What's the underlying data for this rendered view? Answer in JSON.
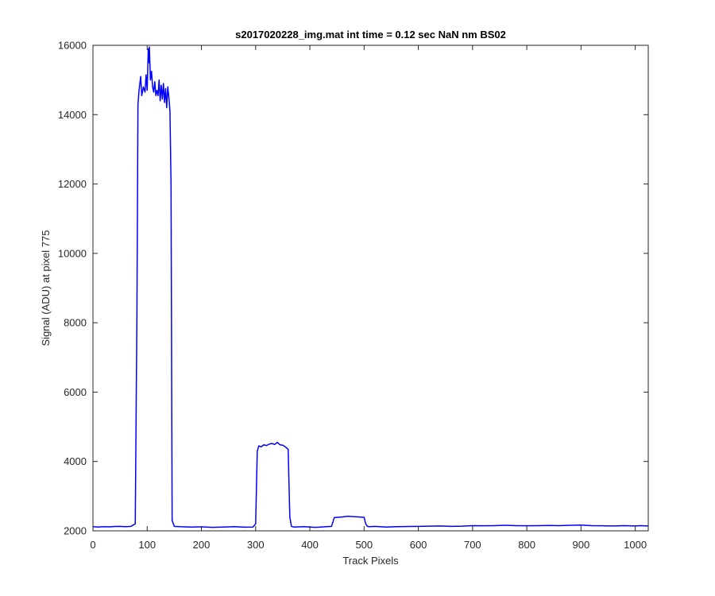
{
  "chart_data": {
    "type": "line",
    "title": "s2017020228_img.mat int time = 0.12 sec  NaN nm BS02",
    "xlabel": "Track Pixels",
    "ylabel": "Signal (ADU) at pixel 775",
    "xlim": [
      0,
      1024
    ],
    "ylim": [
      2000,
      16000
    ],
    "xticks": [
      "0",
      "100",
      "200",
      "300",
      "400",
      "500",
      "600",
      "700",
      "800",
      "900",
      "1000"
    ],
    "yticks": [
      "2000",
      "4000",
      "6000",
      "8000",
      "10000",
      "12000",
      "14000",
      "16000"
    ],
    "grid": false,
    "line_color": "#0000ff",
    "series": [
      {
        "x": [
          0,
          10,
          20,
          30,
          40,
          50,
          60,
          70,
          78,
          81,
          83,
          85,
          88,
          90,
          93,
          96,
          98,
          100,
          102,
          103,
          104,
          106,
          108,
          110,
          112,
          114,
          116,
          118,
          120,
          122,
          124,
          126,
          128,
          130,
          132,
          134,
          136,
          138,
          140,
          142,
          144,
          146,
          150,
          160,
          180,
          200,
          220,
          240,
          260,
          280,
          295,
          300,
          303,
          306,
          310,
          315,
          320,
          325,
          330,
          335,
          340,
          345,
          350,
          355,
          360,
          363,
          366,
          370,
          380,
          390,
          400,
          410,
          420,
          430,
          440,
          445,
          450,
          460,
          470,
          480,
          490,
          500,
          503,
          506,
          510,
          520,
          540,
          560,
          580,
          600,
          620,
          640,
          660,
          680,
          700,
          720,
          740,
          760,
          780,
          800,
          820,
          840,
          860,
          880,
          900,
          920,
          940,
          960,
          980,
          1000,
          1010,
          1024
        ],
        "y": [
          2120,
          2110,
          2120,
          2115,
          2125,
          2130,
          2120,
          2130,
          2200,
          8000,
          14300,
          14700,
          15100,
          14550,
          14800,
          14650,
          15150,
          14700,
          15900,
          15500,
          15950,
          15000,
          15250,
          14800,
          14650,
          14950,
          14550,
          14700,
          14550,
          15000,
          14400,
          14850,
          14450,
          14900,
          14350,
          14750,
          14200,
          14800,
          14500,
          14100,
          12000,
          2300,
          2130,
          2120,
          2110,
          2115,
          2100,
          2110,
          2120,
          2105,
          2110,
          2200,
          4300,
          4450,
          4420,
          4480,
          4460,
          4500,
          4520,
          4490,
          4550,
          4480,
          4470,
          4420,
          4350,
          2400,
          2130,
          2110,
          2115,
          2120,
          2110,
          2100,
          2110,
          2120,
          2130,
          2380,
          2390,
          2400,
          2420,
          2410,
          2400,
          2390,
          2200,
          2130,
          2120,
          2130,
          2110,
          2120,
          2125,
          2130,
          2135,
          2140,
          2130,
          2135,
          2150,
          2145,
          2150,
          2160,
          2150,
          2145,
          2150,
          2155,
          2150,
          2160,
          2165,
          2150,
          2145,
          2140,
          2150,
          2140,
          2150,
          2140
        ]
      }
    ]
  }
}
